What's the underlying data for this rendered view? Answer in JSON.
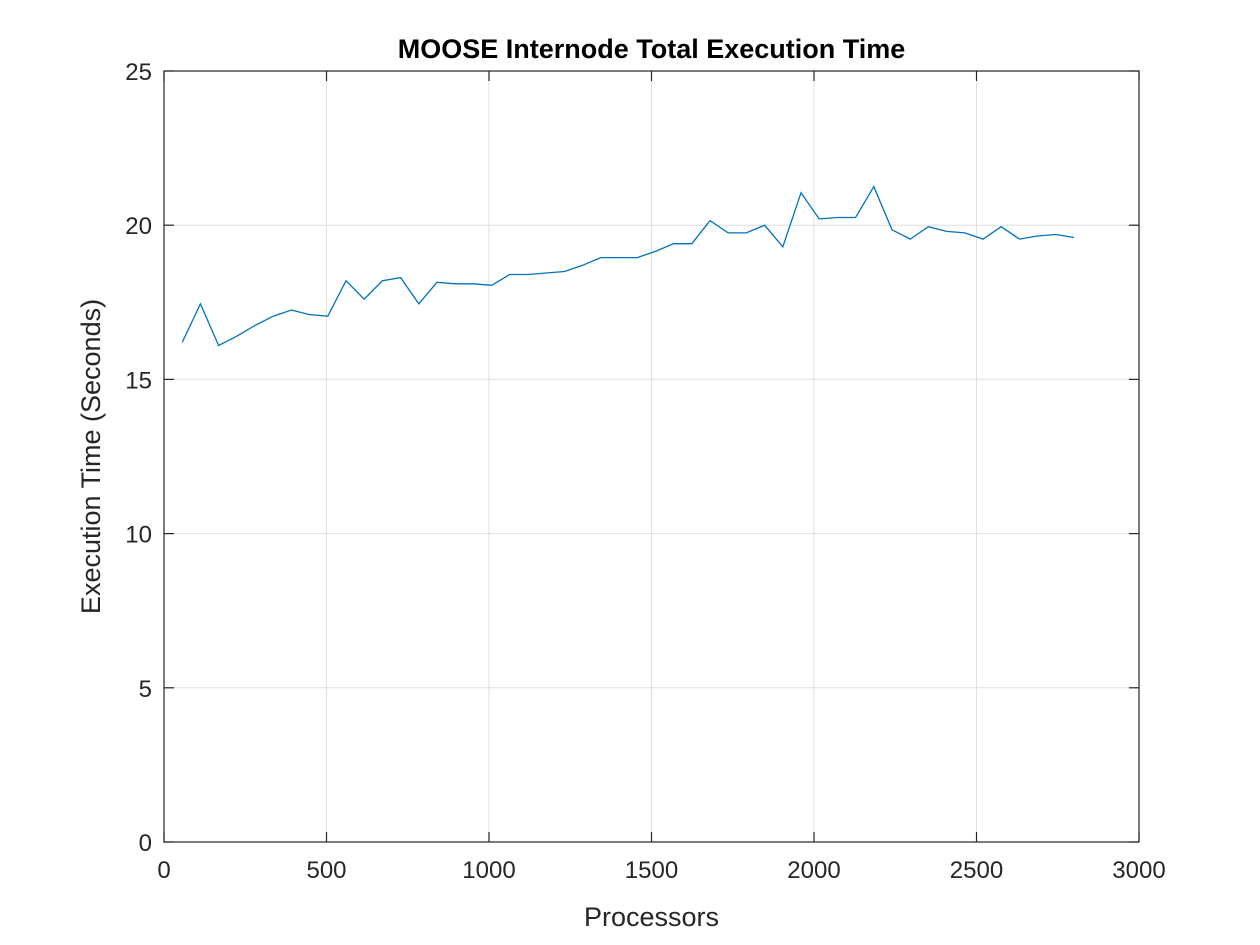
{
  "chart_data": {
    "type": "line",
    "title": "MOOSE Internode Total Execution Time",
    "xlabel": "Processors",
    "ylabel": "Execution Time (Seconds)",
    "xlim": [
      0,
      3000
    ],
    "ylim": [
      0,
      25
    ],
    "xticks": [
      0,
      500,
      1000,
      1500,
      2000,
      2500,
      3000
    ],
    "yticks": [
      0,
      5,
      10,
      15,
      20,
      25
    ],
    "grid": true,
    "series_color": "#0072bd",
    "series": [
      {
        "x": [
          56,
          112,
          168,
          224,
          280,
          336,
          392,
          448,
          504,
          560,
          616,
          672,
          728,
          784,
          840,
          896,
          952,
          1008,
          1064,
          1120,
          1176,
          1232,
          1288,
          1344,
          1400,
          1456,
          1512,
          1568,
          1624,
          1680,
          1736,
          1792,
          1848,
          1904,
          1960,
          2016,
          2072,
          2128,
          2184,
          2240,
          2296,
          2352,
          2408,
          2464,
          2520,
          2576,
          2632,
          2688,
          2744,
          2800
        ],
        "y": [
          16.2,
          17.45,
          16.1,
          16.4,
          16.75,
          17.05,
          17.25,
          17.1,
          17.05,
          18.2,
          17.6,
          18.2,
          18.3,
          17.45,
          18.15,
          18.1,
          18.1,
          18.05,
          18.4,
          18.4,
          18.45,
          18.5,
          18.7,
          18.95,
          18.95,
          18.95,
          19.15,
          19.4,
          19.4,
          20.15,
          19.75,
          19.75,
          20.0,
          19.3,
          21.05,
          20.2,
          20.25,
          20.25,
          21.25,
          19.85,
          19.55,
          19.95,
          19.8,
          19.75,
          19.55,
          19.95,
          19.55,
          19.65,
          19.7,
          19.6
        ]
      }
    ]
  }
}
